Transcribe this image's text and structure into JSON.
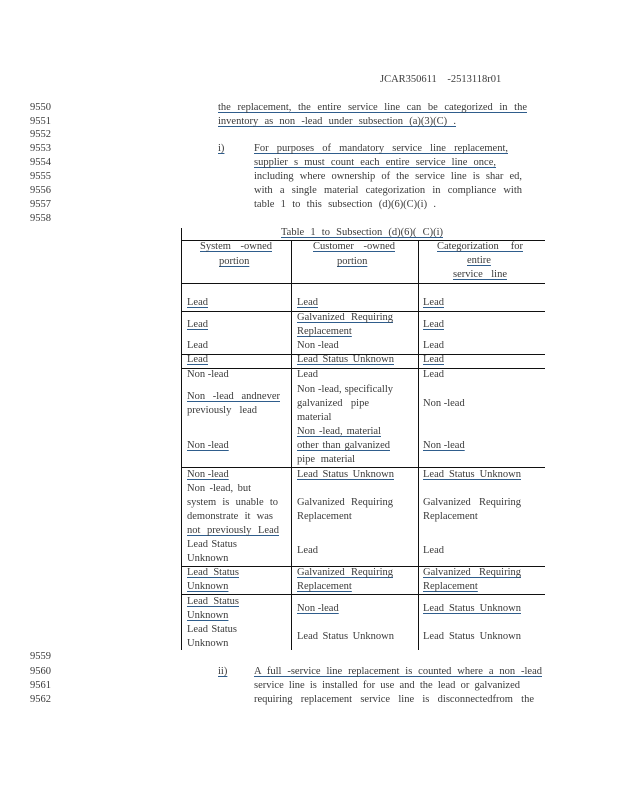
{
  "header": {
    "doc_id": "JCAR350611 -2513118r01"
  },
  "line_numbers": {
    "top": [
      "9550",
      "9551",
      "9552",
      "9553",
      "9554",
      "9555",
      "9556",
      "9557",
      "9558"
    ],
    "bottom": [
      "9559",
      "9560",
      "9561",
      "9562"
    ]
  },
  "para_top": [
    "the replacement, the entire service line can be categorized in the",
    "inventory as non -lead under subsection (a)(3)(C) ."
  ],
  "item_i": {
    "label": "i)",
    "lines": [
      "For purposes of mandatory service line replacement,",
      "supplier s must count each entire service line once,",
      "including where ownership of the service line is shar ed,",
      "with a single material categorization in compliance with",
      "table 1 to this subsection (d)(6)(C)(i) ."
    ]
  },
  "table": {
    "title": "Table 1 to Subsection (d)(6)( C)(i)",
    "headers": [
      [
        "System -owned",
        "portion"
      ],
      [
        "Customer -owned",
        "portion"
      ],
      [
        "Categorization for",
        "entire",
        "service line"
      ]
    ],
    "cells": {
      "r1": [
        "Lead",
        "Lead",
        "Lead"
      ],
      "r2": [
        "Lead",
        "Galvanized Requiring",
        "Replacement",
        "Lead"
      ],
      "r3": [
        "Lead",
        "Non -lead",
        "Lead"
      ],
      "r4": [
        "Lead",
        "Lead Status Unknown",
        "Lead"
      ],
      "r5c1": [
        "Non -lead",
        "Non -lead andnever",
        "previously lead",
        "Non -lead"
      ],
      "r5c2": [
        "Lead",
        "Non -lead, specifically",
        "galvanized pipe",
        "material",
        "Non -lead, material",
        "other than galvanized",
        "pipe material"
      ],
      "r5c3": [
        "Lead",
        "Non -lead",
        "Non -lead"
      ],
      "r6c1": [
        "Non -lead",
        "Non -lead, but",
        "system is unable to",
        "demonstrate it was",
        "not previously Lead",
        "Lead Status",
        "Unknown"
      ],
      "r6c2": [
        "Lead Status Unknown",
        "Galvanized Requiring",
        "Replacement",
        "Lead"
      ],
      "r6c3": [
        "Lead Status Unknown",
        "Galvanized Requiring",
        "Replacement",
        "Lead"
      ],
      "r7": [
        "Lead Status",
        "Unknown",
        "Galvanized Requiring",
        "Replacement",
        "Galvanized Requiring",
        "Replacement"
      ],
      "r8c1": [
        "Lead Status",
        "Unknown",
        "Lead Status",
        "Unknown"
      ],
      "r8c2": [
        "Non -lead",
        "Lead Status Unknown"
      ],
      "r8c3": [
        "Lead Status Unknown",
        "Lead Status Unknown"
      ]
    }
  },
  "item_ii": {
    "label": "ii)",
    "lines": [
      "A full -service line replacement is counted where a non -lead",
      "service line is installed for use and the lead or galvanized",
      "requiring replacement service line is disconnectedfrom the"
    ]
  }
}
